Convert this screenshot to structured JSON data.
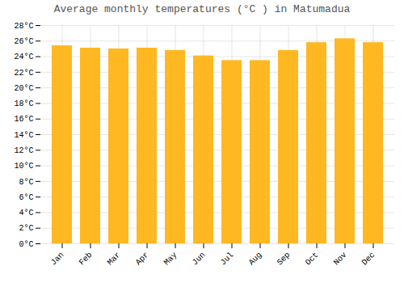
{
  "chart_data": {
    "type": "bar",
    "title": "Average monthly temperatures (°C ) in Matumadua",
    "categories": [
      "Jan",
      "Feb",
      "Mar",
      "Apr",
      "May",
      "Jun",
      "Jul",
      "Aug",
      "Sep",
      "Oct",
      "Nov",
      "Dec"
    ],
    "values": [
      25.4,
      25.1,
      25.0,
      25.1,
      24.8,
      24.1,
      23.5,
      23.5,
      24.8,
      25.8,
      26.3,
      25.8
    ],
    "color": "#FFB822",
    "ylim": [
      0,
      28
    ],
    "yticks": [
      {
        "value": 0,
        "label": "0°C"
      },
      {
        "value": 2,
        "label": "2°C"
      },
      {
        "value": 4,
        "label": "4°C"
      },
      {
        "value": 6,
        "label": "6°C"
      },
      {
        "value": 8,
        "label": "8°C"
      },
      {
        "value": 10,
        "label": "10°C"
      },
      {
        "value": 12,
        "label": "12°C"
      },
      {
        "value": 14,
        "label": "14°C"
      },
      {
        "value": 16,
        "label": "16°C"
      },
      {
        "value": 18,
        "label": "18°C"
      },
      {
        "value": 20,
        "label": "20°C"
      },
      {
        "value": 22,
        "label": "22°C"
      },
      {
        "value": 24,
        "label": "24°C"
      },
      {
        "value": 26,
        "label": "26°C"
      },
      {
        "value": 28,
        "label": "28°C"
      }
    ],
    "grid": true
  }
}
